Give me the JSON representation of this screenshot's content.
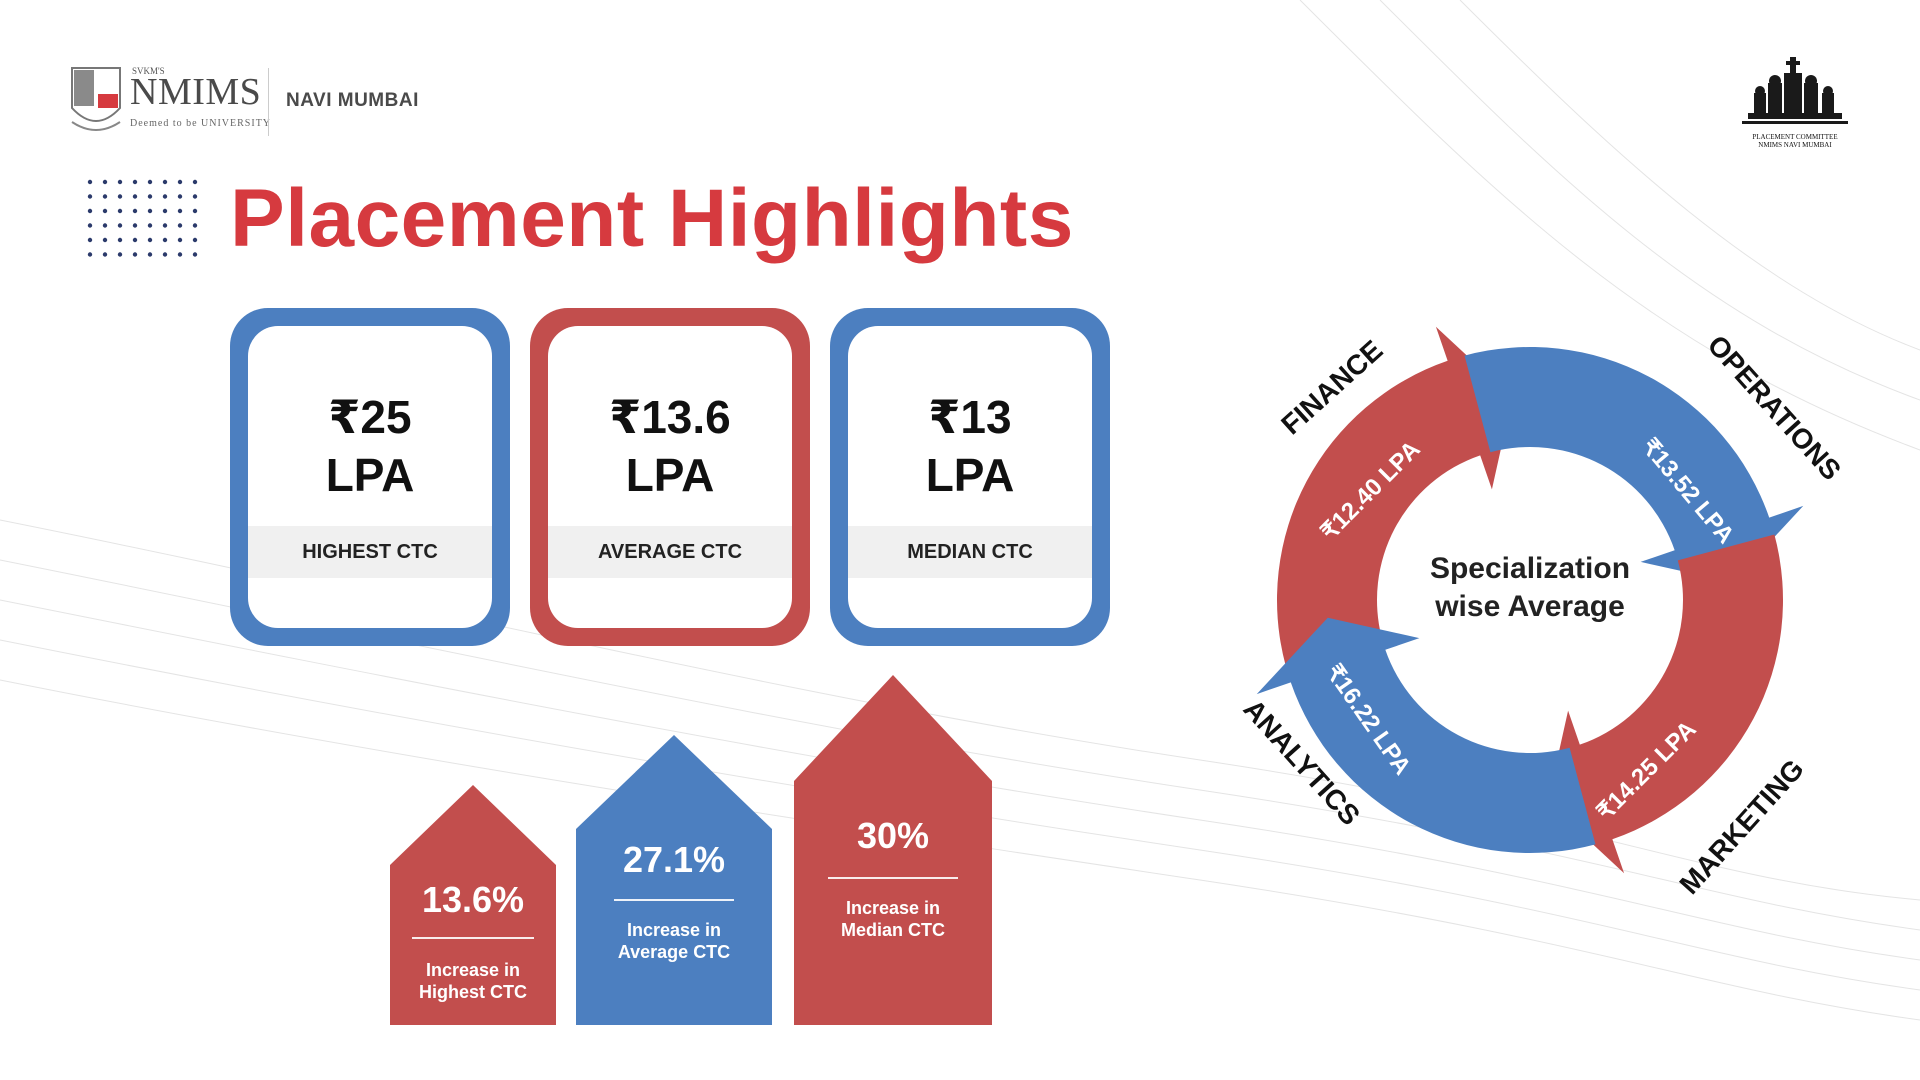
{
  "header": {
    "logo": {
      "svkm": "SVKM'S",
      "name": "NMIMS",
      "tagline": "Deemed to be UNIVERSITY"
    },
    "campus": "NAVI MUMBAI",
    "committee_logo": {
      "caption_line1": "PLACEMENT COMMITTEE",
      "caption_line2": "NMIMS NAVI MUMBAI"
    }
  },
  "title": "Placement Highlights",
  "colors": {
    "title": "#d63a3f",
    "blue": "#4c7fc0",
    "red": "#c24e4d"
  },
  "cards": [
    {
      "value_line1": "₹25",
      "value_line2": "LPA",
      "label": "HIGHEST CTC",
      "frame": "blue"
    },
    {
      "value_line1": "₹13.6",
      "value_line2": "LPA",
      "label": "AVERAGE CTC",
      "frame": "red"
    },
    {
      "value_line1": "₹13",
      "value_line2": "LPA",
      "label": "MEDIAN CTC",
      "frame": "blue"
    }
  ],
  "increases": [
    {
      "percent": "13.6%",
      "desc_line1": "Increase in",
      "desc_line2": "Highest CTC",
      "color": "red"
    },
    {
      "percent": "27.1%",
      "desc_line1": "Increase in",
      "desc_line2": "Average CTC",
      "color": "blue"
    },
    {
      "percent": "30%",
      "desc_line1": "Increase in",
      "desc_line2": "Median CTC",
      "color": "red"
    }
  ],
  "cycle": {
    "center_line1": "Specialization",
    "center_line2": "wise Average",
    "segments": [
      {
        "name": "FINANCE",
        "value": "₹12.40 LPA",
        "color": "red"
      },
      {
        "name": "OPERATIONS",
        "value": "₹13.52 LPA",
        "color": "blue"
      },
      {
        "name": "MARKETING",
        "value": "₹14.25 LPA",
        "color": "red"
      },
      {
        "name": "ANALYTICS",
        "value": "₹16.22 LPA",
        "color": "blue"
      }
    ]
  }
}
